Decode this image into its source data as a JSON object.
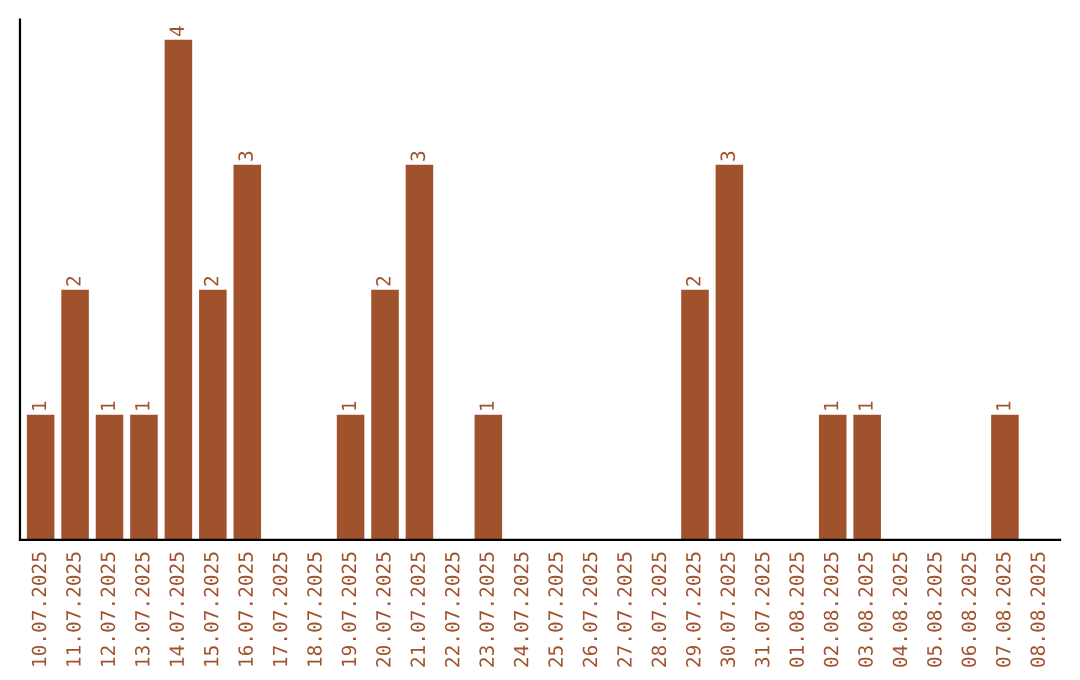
{
  "chart_data": {
    "type": "bar",
    "categories": [
      "10.07.2025",
      "11.07.2025",
      "12.07.2025",
      "13.07.2025",
      "14.07.2025",
      "15.07.2025",
      "16.07.2025",
      "17.07.2025",
      "18.07.2025",
      "19.07.2025",
      "20.07.2025",
      "21.07.2025",
      "22.07.2025",
      "23.07.2025",
      "24.07.2025",
      "25.07.2025",
      "26.07.2025",
      "27.07.2025",
      "28.07.2025",
      "29.07.2025",
      "30.07.2025",
      "31.07.2025",
      "01.08.2025",
      "02.08.2025",
      "03.08.2025",
      "04.08.2025",
      "05.08.2025",
      "06.08.2025",
      "07.08.2025",
      "08.08.2025"
    ],
    "values": [
      1,
      2,
      1,
      1,
      4,
      2,
      3,
      0,
      0,
      1,
      2,
      3,
      0,
      1,
      0,
      0,
      0,
      0,
      0,
      2,
      3,
      0,
      0,
      1,
      1,
      0,
      0,
      0,
      1,
      0
    ],
    "value_labels": [
      "1",
      "2",
      "1",
      "1",
      "4",
      "2",
      "3",
      null,
      null,
      "1",
      "2",
      "3",
      null,
      "1",
      null,
      null,
      null,
      null,
      null,
      "2",
      "3",
      null,
      null,
      "1",
      "1",
      null,
      null,
      null,
      "1",
      null
    ],
    "color": "#a0522d",
    "tick_labels": "x",
    "grid": false,
    "legend": false
  }
}
